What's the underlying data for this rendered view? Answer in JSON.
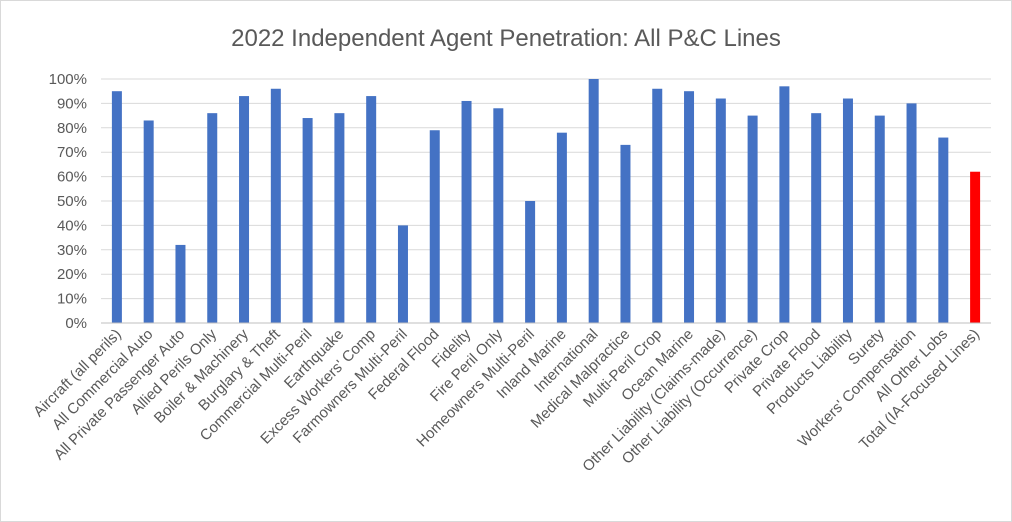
{
  "chart_data": {
    "type": "bar",
    "title": "2022 Independent  Agent Penetration: All P&C Lines",
    "xlabel": "",
    "ylabel": "",
    "ylim": [
      0,
      1
    ],
    "y_ticks": [
      0,
      0.1,
      0.2,
      0.3,
      0.4,
      0.5,
      0.6,
      0.7,
      0.8,
      0.9,
      1.0
    ],
    "y_tick_labels": [
      "0%",
      "10%",
      "20%",
      "30%",
      "40%",
      "50%",
      "60%",
      "70%",
      "80%",
      "90%",
      "100%"
    ],
    "grid": true,
    "legend": "none",
    "categories": [
      "Aircraft (all perils)",
      "All Commercial Auto",
      "All Private Passenger Auto",
      "Allied Perils Only",
      "Boiler & Machinery",
      "Burglary & Theft",
      "Commercial Multi-Peril",
      "Earthquake",
      "Excess Workers' Comp",
      "Farmowners Multi-Peril",
      "Federal Flood",
      "Fidelity",
      "Fire Peril Only",
      "Homeowners Multi-Peril",
      "Inland Marine",
      "International",
      "Medical Malpractice",
      "Multi-Peril Crop",
      "Ocean Marine",
      "Other Liability (Claims-made)",
      "Other Liability (Occurrence)",
      "Private Crop",
      "Private Flood",
      "Products Liability",
      "Surety",
      "Workers' Compensation",
      "All Other Lobs",
      "Total (IA-Focused Lines)"
    ],
    "values": [
      0.95,
      0.83,
      0.32,
      0.86,
      0.93,
      0.96,
      0.84,
      0.86,
      0.93,
      0.4,
      0.79,
      0.91,
      0.88,
      0.5,
      0.78,
      1.0,
      0.73,
      0.96,
      0.95,
      0.92,
      0.85,
      0.97,
      0.86,
      0.92,
      0.85,
      0.9,
      0.76,
      0.62
    ],
    "colors": {
      "default_bar": "#4472c4",
      "highlight_bar": "#ff0000"
    },
    "highlight_category": "Total (IA-Focused Lines)"
  }
}
